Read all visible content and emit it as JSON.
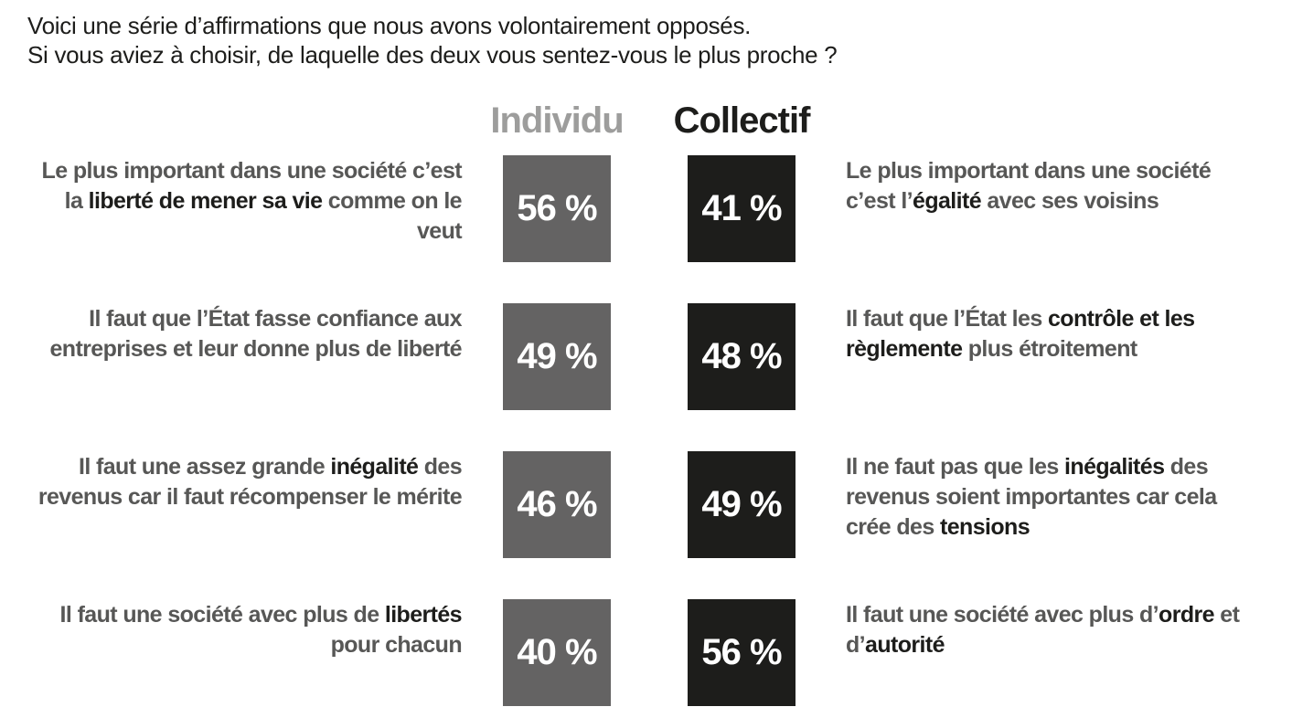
{
  "title": {
    "line1": "Voici une série d’affirmations que nous avons volontairement opposés.",
    "line2": "Si vous aviez à choisir, de laquelle des deux vous sentez-vous le plus proche ?"
  },
  "columns": {
    "individu_label": "Individu",
    "collectif_label": "Collectif"
  },
  "colors": {
    "statement_gray": "#575756",
    "statement_black": "#1d1d1b",
    "individu_header": "#9d9d9c",
    "collectif_header": "#1d1d1b",
    "individu_box": "#646363",
    "collectif_box": "#1d1d1b",
    "box_text": "#ffffff"
  },
  "rows": [
    {
      "left_segments": [
        {
          "text": "Le plus important dans une société c’est la ",
          "em": false
        },
        {
          "text": "liberté de mener sa vie",
          "em": true
        },
        {
          "text": " comme on le veut",
          "em": false
        }
      ],
      "individu_value": "56 %",
      "collectif_value": "41 %",
      "right_segments": [
        {
          "text": "Le plus important dans une société c’est l’",
          "em": false
        },
        {
          "text": "égalité",
          "em": true
        },
        {
          "text": " avec ses voisins",
          "em": false
        }
      ]
    },
    {
      "left_segments": [
        {
          "text": "Il faut que l’État fasse confiance aux entreprises et leur donne plus de liberté",
          "em": false
        }
      ],
      "individu_value": "49 %",
      "collectif_value": "48 %",
      "right_segments": [
        {
          "text": "Il faut que l’État les ",
          "em": false
        },
        {
          "text": "contrôle et les règlemente",
          "em": true
        },
        {
          "text": " plus étroitement",
          "em": false
        }
      ]
    },
    {
      "left_segments": [
        {
          "text": "Il faut une assez grande ",
          "em": false
        },
        {
          "text": "inégalité",
          "em": true
        },
        {
          "text": " des revenus car il faut récompenser le mérite",
          "em": false
        }
      ],
      "individu_value": "46 %",
      "collectif_value": "49 %",
      "right_segments": [
        {
          "text": "Il ne faut pas que les ",
          "em": false
        },
        {
          "text": "inégalités",
          "em": true
        },
        {
          "text": " des revenus soient importantes car cela crée des ",
          "em": false
        },
        {
          "text": "tensions",
          "em": true
        }
      ]
    },
    {
      "left_segments": [
        {
          "text": "Il faut une société avec plus de ",
          "em": false
        },
        {
          "text": "libertés",
          "em": true
        },
        {
          "text": " pour chacun",
          "em": false
        }
      ],
      "individu_value": "40 %",
      "collectif_value": "56 %",
      "right_segments": [
        {
          "text": "Il faut une société avec plus d’",
          "em": false
        },
        {
          "text": "ordre",
          "em": true
        },
        {
          "text": " et d’",
          "em": false
        },
        {
          "text": "autorité",
          "em": true
        }
      ]
    }
  ],
  "chart_data": {
    "type": "table",
    "title": "Voici une série d’affirmations que nous avons volontairement opposés. Si vous aviez à choisir, de laquelle des deux vous sentez-vous le plus proche ?",
    "unit": "%",
    "legend_position": "top",
    "series": [
      {
        "name": "Individu",
        "values": [
          56,
          49,
          46,
          40
        ]
      },
      {
        "name": "Collectif",
        "values": [
          41,
          48,
          49,
          56
        ]
      }
    ],
    "categories": [
      {
        "individu": "Le plus important dans une société c’est la liberté de mener sa vie comme on le veut",
        "collectif": "Le plus important dans une société c’est l’égalité avec ses voisins"
      },
      {
        "individu": "Il faut que l’État fasse confiance aux entreprises et leur donne plus de liberté",
        "collectif": "Il faut que l’État les contrôle et les règlemente plus étroitement"
      },
      {
        "individu": "Il faut une assez grande inégalité des revenus car il faut récompenser le mérite",
        "collectif": "Il ne faut pas que les inégalités des revenus soient importantes car cela crée des tensions"
      },
      {
        "individu": "Il faut une société avec plus de libertés pour chacun",
        "collectif": "Il faut une société avec plus d’ordre et d’autorité"
      }
    ]
  }
}
